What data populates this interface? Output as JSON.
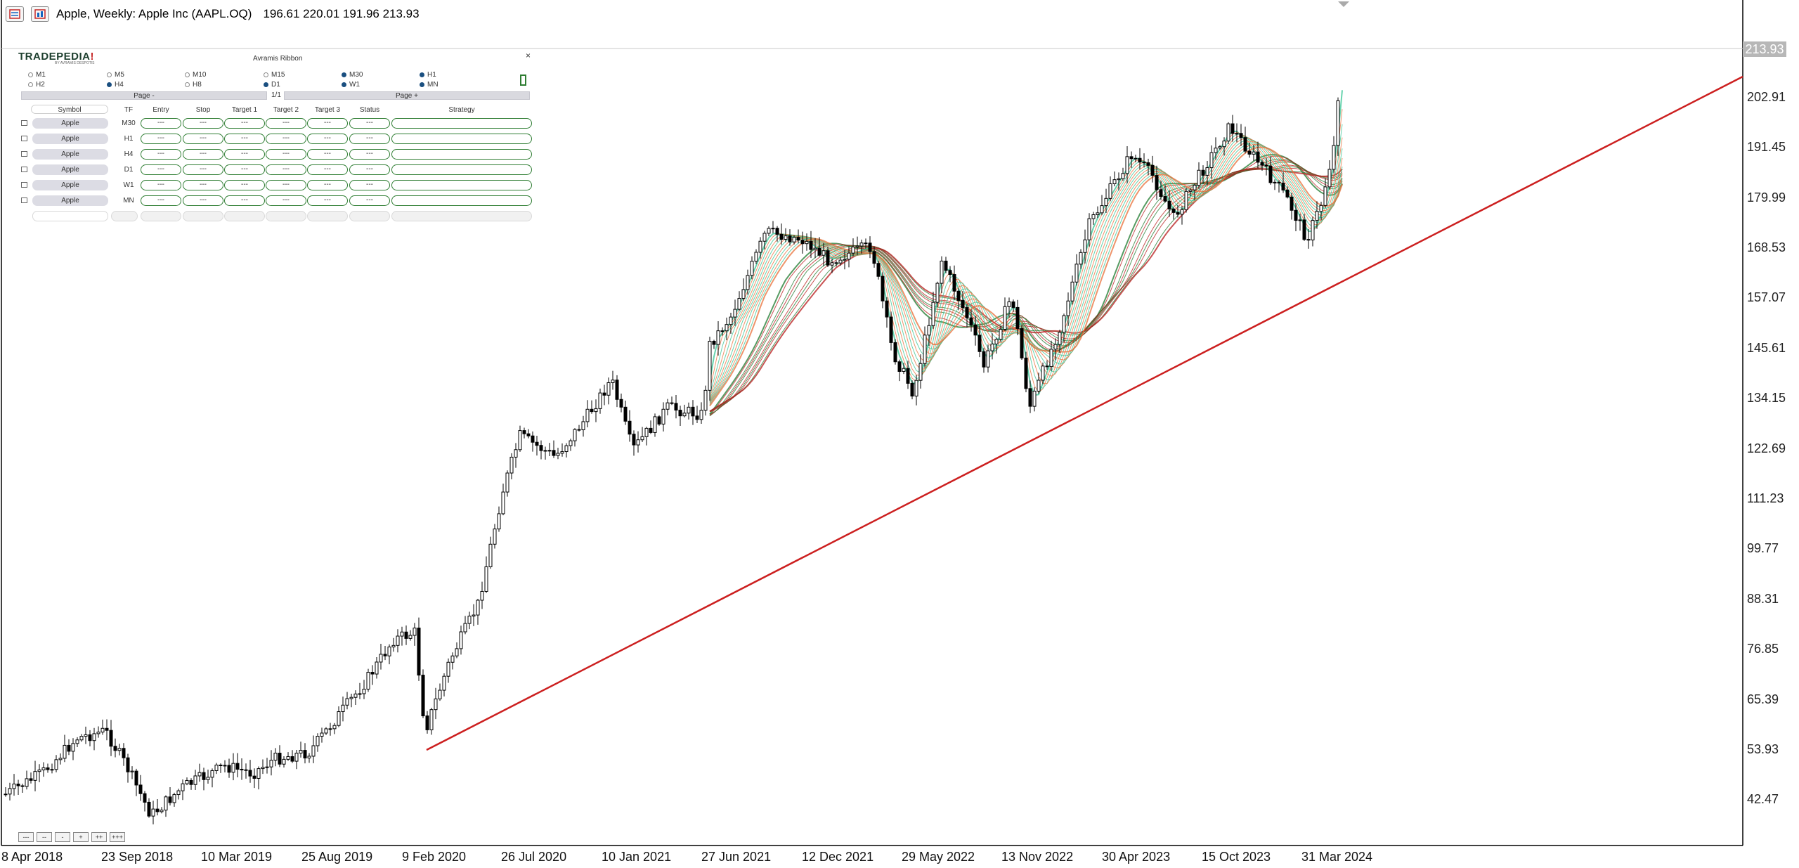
{
  "window": {
    "title": "Apple, Weekly:  Apple Inc (AAPL.OQ)",
    "ohlc": "196.61 220.01 191.96 213.93"
  },
  "price_axis": {
    "labels": [
      "202.91",
      "191.45",
      "179.99",
      "168.53",
      "157.07",
      "145.61",
      "134.15",
      "122.69",
      "111.23",
      "99.77",
      "88.31",
      "76.85",
      "65.39",
      "53.93",
      "42.47"
    ],
    "current_price": "213.93"
  },
  "time_axis": {
    "labels": [
      "8 Apr 2018",
      "23 Sep 2018",
      "10 Mar 2019",
      "25 Aug 2019",
      "9 Feb 2020",
      "26 Jul 2020",
      "10 Jan 2021",
      "27 Jun 2021",
      "12 Dec 2021",
      "29 May 2022",
      "13 Nov 2022",
      "30 Apr 2023",
      "15 Oct 2023",
      "31 Mar 2024"
    ]
  },
  "zoom_buttons": [
    "---",
    "--",
    "-",
    "+",
    "++",
    "+++"
  ],
  "widget": {
    "logo": "TRADEPEDIA",
    "logo_mark": "!",
    "logo_sub": "BY AVRAMIS DESPOTIS",
    "title": "Avramis Ribbon",
    "close": "×",
    "timeframes_row1": [
      {
        "label": "M1",
        "selected": false
      },
      {
        "label": "M5",
        "selected": false
      },
      {
        "label": "M10",
        "selected": false
      },
      {
        "label": "M15",
        "selected": false
      },
      {
        "label": "M30",
        "selected": true
      },
      {
        "label": "H1",
        "selected": true
      }
    ],
    "timeframes_row2": [
      {
        "label": "H2",
        "selected": false
      },
      {
        "label": "H4",
        "selected": true
      },
      {
        "label": "H8",
        "selected": false
      },
      {
        "label": "D1",
        "selected": true
      },
      {
        "label": "W1",
        "selected": true
      },
      {
        "label": "MN",
        "selected": true
      }
    ],
    "page_prev": "Page -",
    "page_next": "Page +",
    "page_indicator": "1/1",
    "columns": [
      "Symbol",
      "TF",
      "Entry",
      "Stop",
      "Target 1",
      "Target 2",
      "Target 3",
      "Status",
      "Strategy"
    ],
    "rows": [
      {
        "symbol": "Apple",
        "tf": "M30",
        "entry": "---",
        "stop": "---",
        "t1": "---",
        "t2": "---",
        "t3": "---",
        "status": "---",
        "strategy": ""
      },
      {
        "symbol": "Apple",
        "tf": "H1",
        "entry": "---",
        "stop": "---",
        "t1": "---",
        "t2": "---",
        "t3": "---",
        "status": "---",
        "strategy": ""
      },
      {
        "symbol": "Apple",
        "tf": "H4",
        "entry": "---",
        "stop": "---",
        "t1": "---",
        "t2": "---",
        "t3": "---",
        "status": "---",
        "strategy": ""
      },
      {
        "symbol": "Apple",
        "tf": "D1",
        "entry": "---",
        "stop": "---",
        "t1": "---",
        "t2": "---",
        "t3": "---",
        "status": "---",
        "strategy": ""
      },
      {
        "symbol": "Apple",
        "tf": "W1",
        "entry": "---",
        "stop": "---",
        "t1": "---",
        "t2": "---",
        "t3": "---",
        "status": "---",
        "strategy": ""
      },
      {
        "symbol": "Apple",
        "tf": "MN",
        "entry": "---",
        "stop": "---",
        "t1": "---",
        "t2": "---",
        "t3": "---",
        "status": "---",
        "strategy": ""
      }
    ]
  },
  "colors": {
    "trendline": "#cc1f1f",
    "ribbon_bull": "#35c493",
    "ribbon_bear": "#e8703a",
    "ribbon_slow_bull": "#1e7a2e",
    "ribbon_slow_bear": "#b71c1c"
  }
}
